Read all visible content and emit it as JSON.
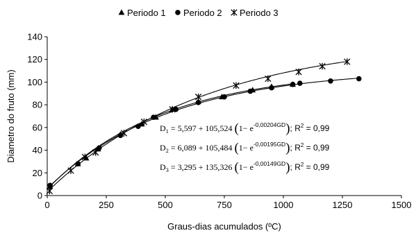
{
  "chart_data": {
    "type": "scatter",
    "xlabel": "Graus-dias acumulados (ºC)",
    "ylabel": "Diametro do fruto (mm)",
    "xlim": [
      0,
      1500
    ],
    "ylim": [
      0,
      140
    ],
    "xticks": [
      "0",
      "250",
      "500",
      "750",
      "1000",
      "1250",
      "1500"
    ],
    "yticks": [
      "0",
      "20",
      "40",
      "60",
      "80",
      "100",
      "120",
      "140"
    ],
    "grid": false,
    "legend": "top-center",
    "series": [
      {
        "name": "Periodo 1",
        "marker": "triangle",
        "fit": {
          "a": 5.597,
          "b": 105.524,
          "k": 0.00204
        },
        "x": [
          12,
          130,
          165,
          215,
          310,
          400,
          460,
          530,
          640,
          740,
          870,
          950,
          1040
        ],
        "y": [
          8,
          28,
          33,
          41,
          54,
          63,
          69,
          76,
          83,
          87,
          93,
          96,
          98
        ]
      },
      {
        "name": "Periodo 2",
        "marker": "circle",
        "fit": {
          "a": 6.089,
          "b": 105.484,
          "k": 0.00195
        },
        "x": [
          12,
          130,
          220,
          310,
          385,
          450,
          545,
          640,
          750,
          860,
          950,
          1040,
          1070,
          1200,
          1320
        ],
        "y": [
          9,
          28,
          42,
          53,
          61,
          69,
          76,
          82,
          87,
          92,
          95,
          98,
          99,
          101,
          103
        ]
      },
      {
        "name": "Periodo 3",
        "marker": "star",
        "fit": {
          "a": 3.295,
          "b": 135.326,
          "k": 0.00149
        },
        "x": [
          10,
          100,
          160,
          205,
          325,
          410,
          530,
          640,
          800,
          935,
          1065,
          1165,
          1270
        ],
        "y": [
          4,
          22,
          34,
          38,
          55,
          65,
          76,
          87,
          97,
          103,
          109,
          114,
          118
        ]
      }
    ],
    "annotations": [
      {
        "lhs": "D",
        "sub": "1",
        "a": "5,597",
        "b": "105,524",
        "exp": "-0,00204GD",
        "r2": "0,99"
      },
      {
        "lhs": "D",
        "sub": "2",
        "a": "6,089",
        "b": "105,484",
        "exp": "-0,00195GD",
        "r2": "0,99"
      },
      {
        "lhs": "D",
        "sub": "3",
        "a": "3,295",
        "b": "135,326",
        "exp": "-0,00149GD",
        "r2": "0,99"
      }
    ],
    "eq_text": {
      "eq": "=",
      "plus": "+",
      "one_minus_e": "1− e",
      "r2_label": "; R",
      "r2_sup": "2",
      "r2_eq": " = ",
      "lparen": "(",
      "rparen": ")"
    }
  }
}
